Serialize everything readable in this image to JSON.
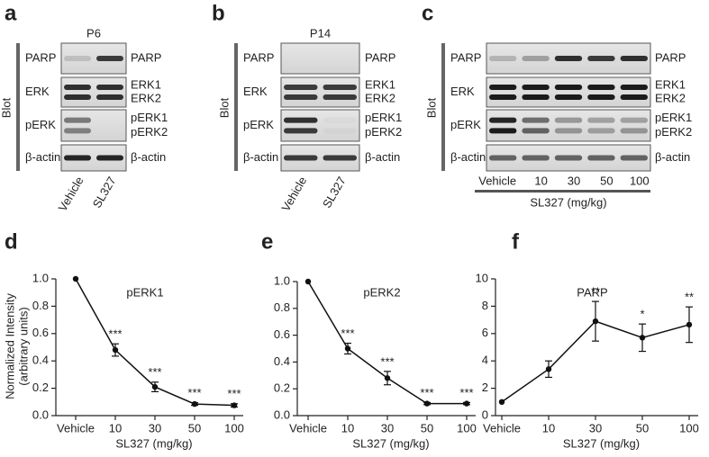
{
  "blots": [
    {
      "letter": "a",
      "side_label": "Blot",
      "title": "P6",
      "rows": [
        {
          "left": "PARP",
          "right": [
            "PARP"
          ]
        },
        {
          "left": "ERK",
          "right": [
            "ERK1",
            "ERK2"
          ]
        },
        {
          "left": "pERK",
          "right": [
            "pERK1",
            "pERK2"
          ]
        },
        {
          "left": "β-actin",
          "right": [
            "β-actin"
          ]
        }
      ],
      "lanes": [
        "Vehicle",
        "SL327"
      ]
    },
    {
      "letter": "b",
      "side_label": "Blot",
      "title": "P14",
      "rows": [
        {
          "left": "PARP",
          "right": [
            "PARP"
          ]
        },
        {
          "left": "ERK",
          "right": [
            "ERK1",
            "ERK2"
          ]
        },
        {
          "left": "pERK",
          "right": [
            "pERK1",
            "pERK2"
          ]
        },
        {
          "left": "β-actin",
          "right": [
            "β-actin"
          ]
        }
      ],
      "lanes": [
        "Vehicle",
        "SL327"
      ]
    },
    {
      "letter": "c",
      "side_label": "Blot",
      "rows": [
        {
          "left": "PARP",
          "right": [
            "PARP"
          ]
        },
        {
          "left": "ERK",
          "right": [
            "ERK1",
            "ERK2"
          ]
        },
        {
          "left": "pERK",
          "right": [
            "pERK1",
            "pERK2"
          ]
        },
        {
          "left": "β-actin",
          "right": [
            "β-actin"
          ]
        }
      ],
      "lanes": [
        "Vehicle",
        "10",
        "30",
        "50",
        "100"
      ],
      "xlabel": "SL327 (mg/kg)"
    }
  ],
  "chart_data": [
    {
      "type": "line",
      "letter": "d",
      "title": "pERK1",
      "ylabel": [
        "Normalized Intensity",
        "(arbitrary units)"
      ],
      "xlabel": "SL327 (mg/kg)",
      "categories": [
        "Vehicle",
        "10",
        "30",
        "50",
        "100"
      ],
      "values": [
        1.0,
        0.48,
        0.21,
        0.085,
        0.075
      ],
      "errors": [
        0,
        0.045,
        0.035,
        0.01,
        0.012
      ],
      "annotations": [
        null,
        "***",
        "***",
        "***",
        "***"
      ],
      "color": "#111",
      "ylim": [
        0,
        1
      ],
      "yticks": [
        {
          "value": 0,
          "label": "0.0"
        },
        0.2,
        0.4,
        0.6,
        0.8,
        {
          "value": 1,
          "label": "1.0"
        }
      ]
    },
    {
      "type": "line",
      "letter": "e",
      "title": "pERK2",
      "xlabel": "SL327 (mg/kg)",
      "categories": [
        "Vehicle",
        "10",
        "30",
        "50",
        "100"
      ],
      "values": [
        1.0,
        0.5,
        0.28,
        0.09,
        0.09
      ],
      "errors": [
        0,
        0.04,
        0.05,
        0.008,
        0.008
      ],
      "annotations": [
        null,
        "***",
        "***",
        "***",
        "***"
      ],
      "color": "#111",
      "ylim": [
        0,
        1
      ],
      "yticks": [
        {
          "value": 0,
          "label": "0.0"
        },
        0.2,
        0.4,
        0.6,
        0.8,
        {
          "value": 1,
          "label": "1.0"
        }
      ]
    },
    {
      "type": "line",
      "letter": "f",
      "title": "PARP",
      "xlabel": "SL327 (mg/kg)",
      "categories": [
        "Vehicle",
        "10",
        "30",
        "50",
        "100"
      ],
      "values": [
        1.0,
        3.4,
        6.9,
        5.7,
        6.65
      ],
      "errors": [
        0,
        0.6,
        1.45,
        1.0,
        1.3
      ],
      "annotations": [
        null,
        null,
        "**",
        "*",
        "**"
      ],
      "color": "#111",
      "ylim": [
        0,
        10
      ],
      "yticks": [
        0,
        2,
        4,
        6,
        8,
        10
      ]
    }
  ]
}
